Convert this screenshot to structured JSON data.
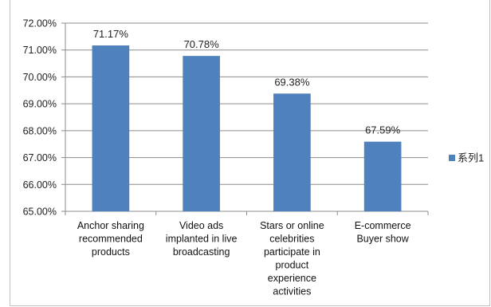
{
  "chart_data": {
    "type": "bar",
    "categories": [
      [
        "Anchor sharing",
        "recommended",
        "products"
      ],
      [
        "Video ads",
        "implanted in live",
        "broadcasting"
      ],
      [
        "Stars or online",
        "celebrities",
        "participate in",
        "product",
        "experience",
        "activities"
      ],
      [
        "E-commerce",
        "Buyer show"
      ]
    ],
    "series": [
      {
        "name": "系列1",
        "values": [
          71.17,
          70.78,
          69.38,
          67.59
        ],
        "labels": [
          "71.17%",
          "70.78%",
          "69.38%",
          "67.59%"
        ]
      }
    ],
    "ylim": [
      65,
      72
    ],
    "y_ticks": [
      "65.00%",
      "66.00%",
      "67.00%",
      "68.00%",
      "69.00%",
      "70.00%",
      "71.00%",
      "72.00%"
    ],
    "grid": true,
    "legend_position": "right",
    "bar_color": "#4f81bd",
    "grid_color": "#8c8c8c"
  }
}
